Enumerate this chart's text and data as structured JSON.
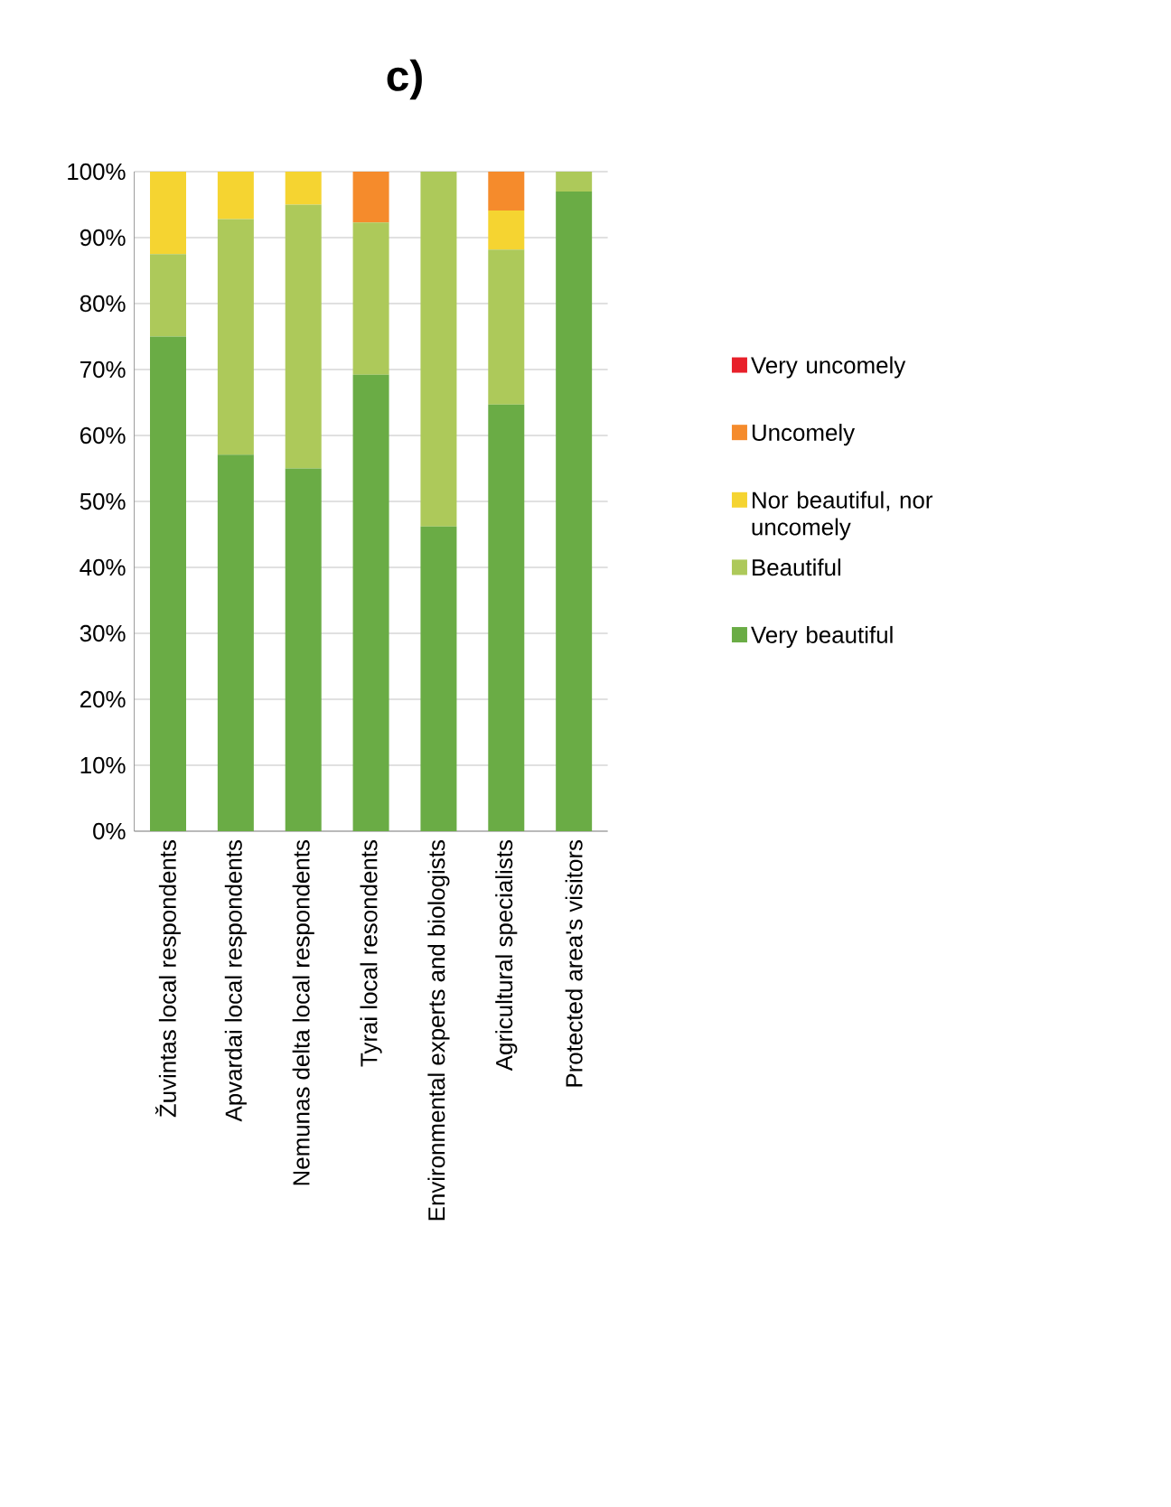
{
  "chart_data": {
    "type": "bar",
    "title": "c)",
    "stacked": true,
    "grid": "y",
    "legend": "right",
    "categories": [
      "Žuvintas local respondents",
      "Apvardai local respondents",
      "Nemunas delta local respondents",
      "Tyrai local resondents",
      "Environmental experts and biologists",
      "Agricultural specialists",
      "Protected area's visitors"
    ],
    "series": [
      {
        "name": "Very beautiful",
        "color": "#6aac45",
        "values": [
          75,
          57.1,
          55,
          69.2,
          46.2,
          64.7,
          97
        ]
      },
      {
        "name": "Beautiful",
        "color": "#adc95a",
        "values": [
          12.5,
          35.7,
          40,
          23.1,
          53.8,
          23.5,
          3
        ]
      },
      {
        "name": "Nor beautiful, nor uncomely",
        "color": "#f5d431",
        "values": [
          12.5,
          7.2,
          5,
          0,
          0,
          5.9,
          0
        ]
      },
      {
        "name": "Uncomely",
        "color": "#f58b2c",
        "values": [
          0,
          0,
          0,
          7.7,
          0,
          5.9,
          0
        ]
      },
      {
        "name": "Very uncomely",
        "color": "#e8202a",
        "values": [
          0,
          0,
          0,
          0,
          0,
          0,
          0
        ]
      }
    ],
    "ylim": [
      0,
      100
    ],
    "yticks": [
      {
        "value": 0,
        "label": "0%"
      },
      {
        "value": 10,
        "label": "10%"
      },
      {
        "value": 20,
        "label": "20%"
      },
      {
        "value": 30,
        "label": "30%"
      },
      {
        "value": 40,
        "label": "40%"
      },
      {
        "value": 50,
        "label": "50%"
      },
      {
        "value": 60,
        "label": "60%"
      },
      {
        "value": 70,
        "label": "70%"
      },
      {
        "value": 80,
        "label": "80%"
      },
      {
        "value": 90,
        "label": "90%"
      },
      {
        "value": 100,
        "label": "100%"
      }
    ]
  }
}
